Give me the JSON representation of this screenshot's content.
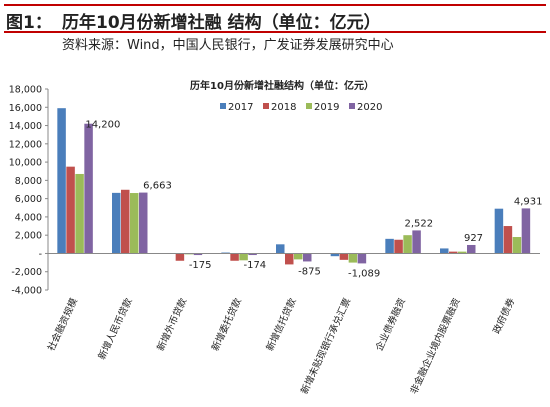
{
  "figure": {
    "label": "图1：",
    "title": "历年10月份新增社融 结构（单位：亿元）",
    "source": "资料来源：Wind，中国人民银行，广发证券发展研究中心",
    "accent_color": "#c00000"
  },
  "chart_data": {
    "type": "bar",
    "title": "历年10月份新增社融结构（单位：亿元）",
    "categories": [
      "社会融资规模",
      "新增人民币贷款",
      "新增外币贷款",
      "新增委托贷款",
      "新增信托贷款",
      "新增未贴现银行承兑汇票",
      "企业债券融资",
      "非金融企业境内股票融资",
      "政府债券"
    ],
    "series": [
      {
        "name": "2017",
        "color": "#4a7ebb",
        "values": [
          15900,
          6632,
          50,
          100,
          1000,
          -300,
          1600,
          550,
          4900
        ]
      },
      {
        "name": "2018",
        "color": "#c0504d",
        "values": [
          9500,
          6970,
          -800,
          -800,
          -1200,
          -700,
          1500,
          200,
          3000
        ]
      },
      {
        "name": "2019",
        "color": "#9bbb59",
        "values": [
          8700,
          6613,
          -100,
          -750,
          -650,
          -1000,
          2000,
          200,
          1800
        ]
      },
      {
        "name": "2020",
        "color": "#8064a2",
        "values": [
          14200,
          6663,
          -175,
          -174,
          -875,
          -1089,
          2522,
          927,
          4931
        ]
      }
    ],
    "data_labels": [
      "14,200",
      "6,663",
      "-175",
      "-174",
      "-875",
      "-1,089",
      "2,522",
      "927",
      "4,931"
    ],
    "y_ticks": [
      "18,000",
      "16,000",
      "14,000",
      "12,000",
      "10,000",
      "8,000",
      "6,000",
      "4,000",
      "2,000",
      "-",
      "-2,000",
      "-4,000"
    ],
    "ylim": [
      -4000,
      18000
    ],
    "legend_position": "top-right",
    "grid": false
  }
}
